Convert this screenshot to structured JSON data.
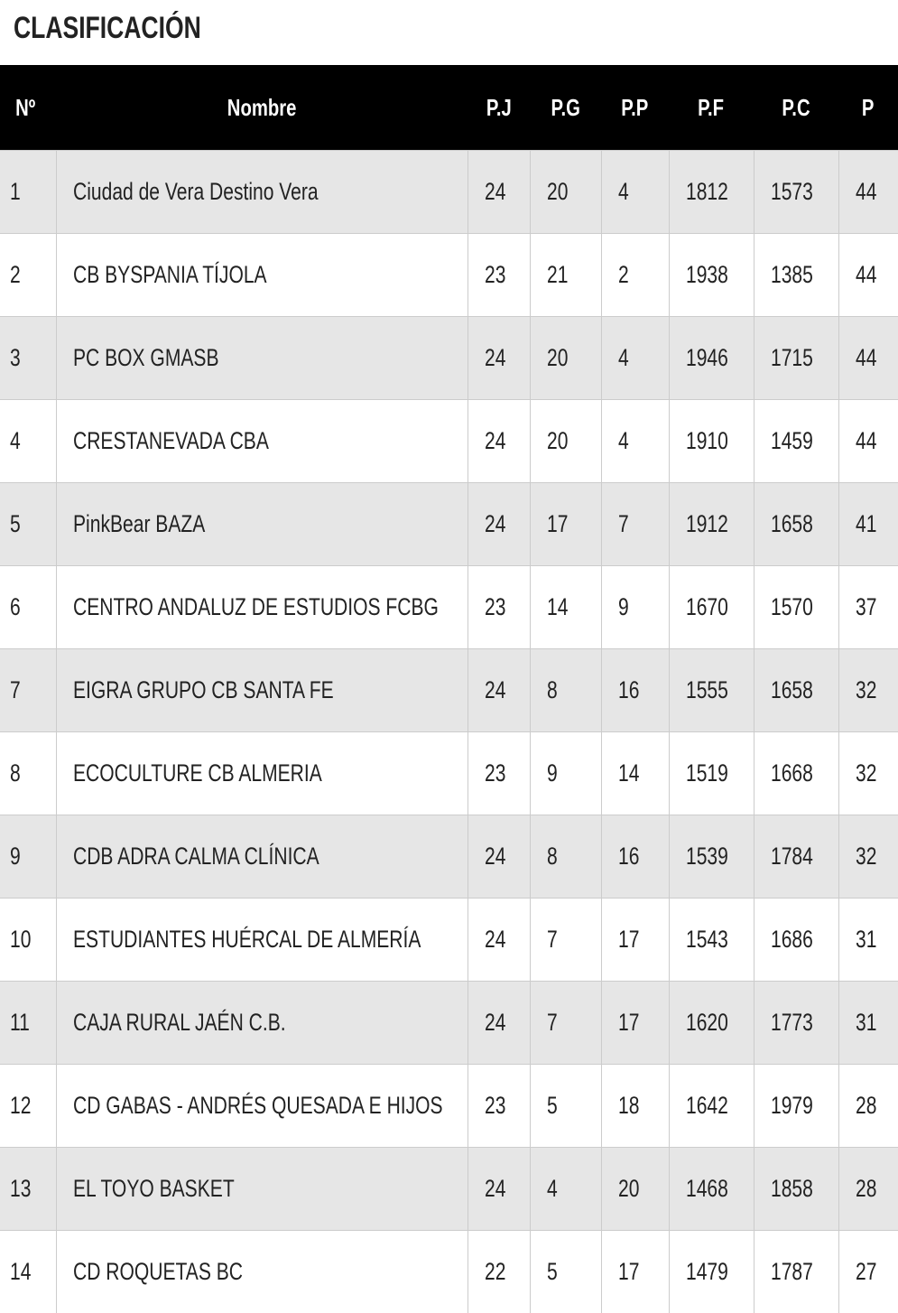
{
  "title": "CLASIFICACIÓN",
  "table": {
    "headers": [
      "Nº",
      "Nombre",
      "P.J",
      "P.G",
      "P.P",
      "P.F",
      "P.C",
      "P"
    ],
    "rows": [
      [
        1,
        "Ciudad de Vera Destino Vera",
        24,
        20,
        4,
        1812,
        1573,
        44
      ],
      [
        2,
        "CB BYSPANIA TÍJOLA",
        23,
        21,
        2,
        1938,
        1385,
        44
      ],
      [
        3,
        "PC BOX GMASB",
        24,
        20,
        4,
        1946,
        1715,
        44
      ],
      [
        4,
        "CRESTANEVADA CBA",
        24,
        20,
        4,
        1910,
        1459,
        44
      ],
      [
        5,
        "PinkBear BAZA",
        24,
        17,
        7,
        1912,
        1658,
        41
      ],
      [
        6,
        "CENTRO ANDALUZ DE ESTUDIOS FCBG",
        23,
        14,
        9,
        1670,
        1570,
        37
      ],
      [
        7,
        "EIGRA GRUPO CB SANTA FE",
        24,
        8,
        16,
        1555,
        1658,
        32
      ],
      [
        8,
        "ECOCULTURE CB ALMERIA",
        23,
        9,
        14,
        1519,
        1668,
        32
      ],
      [
        9,
        "CDB ADRA CALMA CLÍNICA",
        24,
        8,
        16,
        1539,
        1784,
        32
      ],
      [
        10,
        "ESTUDIANTES HUÉRCAL DE ALMERÍA",
        24,
        7,
        17,
        1543,
        1686,
        31
      ],
      [
        11,
        "CAJA RURAL JAÉN C.B.",
        24,
        7,
        17,
        1620,
        1773,
        31
      ],
      [
        12,
        "CD GABAS - ANDRÉS QUESADA E HIJOS",
        23,
        5,
        18,
        1642,
        1979,
        28
      ],
      [
        13,
        "EL TOYO BASKET",
        24,
        4,
        20,
        1468,
        1858,
        28
      ],
      [
        14,
        "CD ROQUETAS BC",
        22,
        5,
        17,
        1479,
        1787,
        27
      ]
    ]
  }
}
